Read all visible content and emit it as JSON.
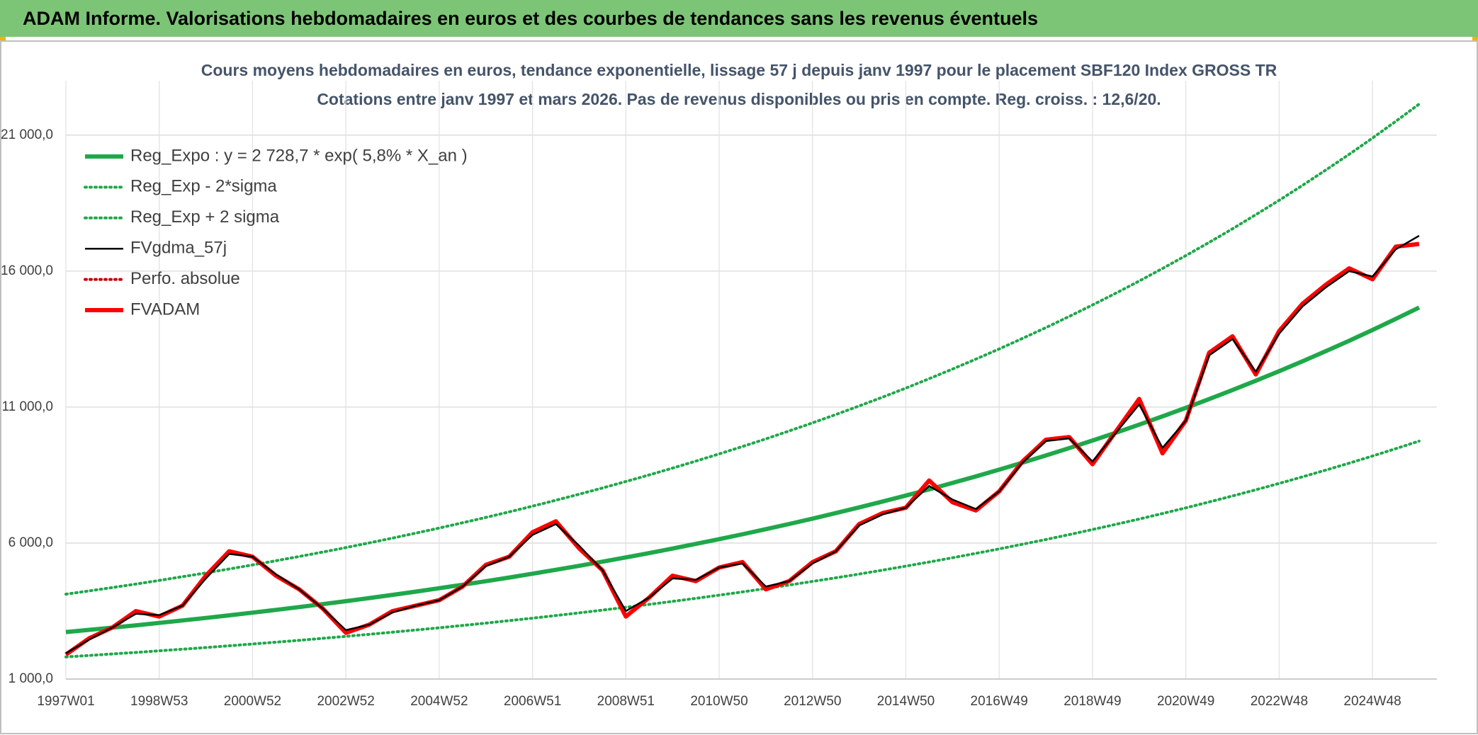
{
  "header": {
    "title": "ADAM Informe. Valorisations hebdomadaires en euros et des courbes de tendances sans les revenus éventuels"
  },
  "chart_data": {
    "type": "line",
    "title": "Cours moyens hebdomadaires en euros, tendance exponentielle, lissage 57 j depuis janv 1997 pour le placement SBF120 Index GROSS TR",
    "subtitle": "Cotations entre janv 1997 et mars 2026. Pas de revenus disponibles ou pris en compte. Reg. croiss. : 12,6/20.",
    "categories": [
      "1997W01",
      null,
      null,
      null,
      "1998W53",
      null,
      null,
      null,
      "2000W52",
      null,
      null,
      null,
      "2002W52",
      null,
      null,
      null,
      "2004W52",
      null,
      null,
      null,
      "2006W51",
      null,
      null,
      null,
      "2008W51",
      null,
      null,
      null,
      "2010W50",
      null,
      null,
      null,
      "2012W50",
      null,
      null,
      null,
      "2014W50",
      null,
      null,
      null,
      "2016W49",
      null,
      null,
      null,
      "2018W49",
      null,
      null,
      null,
      "2020W49",
      null,
      null,
      null,
      "2022W48",
      null,
      null,
      null,
      "2024W48",
      null,
      null
    ],
    "ylim": [
      1000,
      23000
    ],
    "yticks": [
      {
        "value": 1000,
        "label": "1 000,0"
      },
      {
        "value": 6000,
        "label": "6 000,0"
      },
      {
        "value": 11000,
        "label": "11 000,0"
      },
      {
        "value": 16000,
        "label": "16 000,0"
      },
      {
        "value": 21000,
        "label": "21 000,0"
      }
    ],
    "grid": true,
    "legend": "top-left",
    "series": [
      {
        "name": "Reg_Expo : y = 2 728,7 * exp( 5,8% *  X_an )",
        "color": "#1fa84a",
        "style": "thick",
        "values": [
          2729,
          2809,
          2892,
          2977,
          3064,
          3155,
          3247,
          3343,
          3441,
          3543,
          3647,
          3754,
          3865,
          3978,
          4095,
          4216,
          4340,
          4467,
          4599,
          4734,
          4873,
          5016,
          5164,
          5316,
          5472,
          5633,
          5799,
          5969,
          6145,
          6325,
          6511,
          6703,
          6900,
          7103,
          7312,
          7527,
          7748,
          7976,
          8211,
          8452,
          8701,
          8957,
          9220,
          9492,
          9771,
          10058,
          10354,
          10659,
          10972,
          11295,
          11627,
          11969,
          12321,
          12684,
          13057,
          13441,
          13836,
          14243,
          14662
        ]
      },
      {
        "name": "Reg_Exp - 2*sigma",
        "color": "#1fa84a",
        "style": "dotted",
        "values": [
          1815,
          1868,
          1923,
          1980,
          2038,
          2098,
          2159,
          2223,
          2288,
          2356,
          2425,
          2496,
          2570,
          2645,
          2723,
          2804,
          2886,
          2971,
          3058,
          3148,
          3240,
          3336,
          3434,
          3535,
          3639,
          3746,
          3856,
          3969,
          4086,
          4206,
          4330,
          4457,
          4589,
          4723,
          4862,
          5005,
          5152,
          5304,
          5460,
          5621,
          5786,
          5956,
          6131,
          6312,
          6498,
          6689,
          6885,
          7088,
          7296,
          7511,
          7732,
          7959,
          8193,
          8435,
          8683,
          8938,
          9201,
          9472,
          9750
        ]
      },
      {
        "name": "Reg_Exp + 2 sigma",
        "color": "#1fa84a",
        "style": "dotted",
        "values": [
          4121,
          4242,
          4367,
          4495,
          4627,
          4764,
          4903,
          5048,
          5196,
          5350,
          5507,
          5669,
          5836,
          6007,
          6183,
          6366,
          6553,
          6745,
          6944,
          7148,
          7358,
          7574,
          7798,
          8027,
          8263,
          8506,
          8756,
          9013,
          9279,
          9551,
          9832,
          10122,
          10419,
          10726,
          11041,
          11366,
          11699,
          12044,
          12399,
          12763,
          13139,
          13525,
          13922,
          14333,
          14754,
          15188,
          15635,
          16095,
          16568,
          17055,
          17557,
          18073,
          18605,
          19153,
          19716,
          20296,
          20892,
          21507,
          22140
        ]
      },
      {
        "name": "FVgdma_57j",
        "color": "#000000",
        "style": "solid",
        "values": [
          1950,
          2450,
          2900,
          3400,
          3350,
          3700,
          4700,
          5600,
          5500,
          4850,
          4300,
          3600,
          2800,
          3000,
          3450,
          3700,
          3900,
          4400,
          5150,
          5500,
          6300,
          6700,
          5900,
          5000,
          3500,
          4000,
          4700,
          4650,
          5100,
          5250,
          4400,
          4600,
          5250,
          5700,
          6650,
          7050,
          7300,
          8100,
          7600,
          7250,
          7900,
          8950,
          9750,
          9850,
          9000,
          10050,
          11100,
          9500,
          10500,
          12900,
          13500,
          12300,
          13700,
          14700,
          15400,
          16000,
          15800,
          16800,
          17300
        ]
      },
      {
        "name": "Perfo. absolue",
        "color": "#c00000",
        "style": "dotted"
      },
      {
        "name": "FVADAM",
        "color": "#ff0000",
        "style": "thick",
        "values": [
          1900,
          2500,
          2900,
          3500,
          3300,
          3700,
          4800,
          5700,
          5500,
          4800,
          4300,
          3600,
          2700,
          3000,
          3500,
          3700,
          3900,
          4400,
          5200,
          5500,
          6400,
          6800,
          5800,
          5000,
          3300,
          4000,
          4800,
          4600,
          5100,
          5300,
          4300,
          4600,
          5300,
          5700,
          6700,
          7100,
          7300,
          8300,
          7500,
          7200,
          7900,
          9000,
          9800,
          9900,
          8900,
          10100,
          11300,
          9300,
          10500,
          13000,
          13600,
          12200,
          13800,
          14800,
          15500,
          16100,
          15700,
          16900,
          17000
        ]
      }
    ]
  }
}
